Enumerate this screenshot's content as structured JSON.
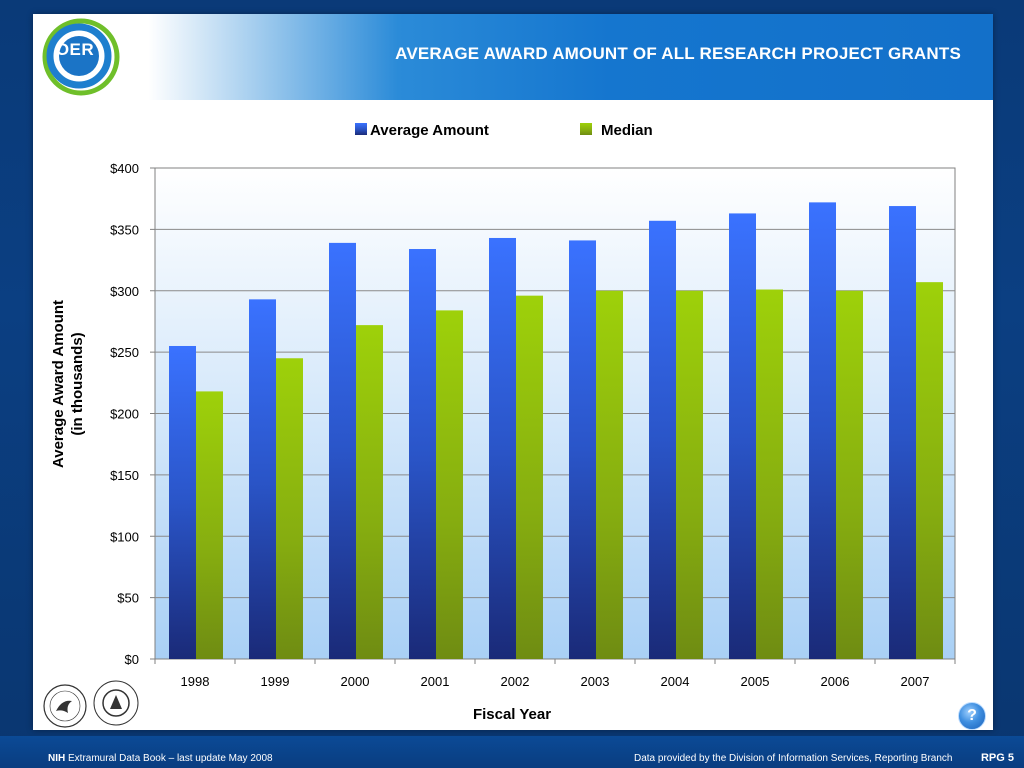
{
  "header": {
    "title": "AVERAGE AWARD AMOUNT OF ALL RESEARCH PROJECT GRANTS",
    "logo_text": "OER"
  },
  "colors": {
    "average": "#2f62e8",
    "median": "#8cc20a",
    "banner": "#1576cf"
  },
  "chart_data": {
    "type": "bar",
    "categories": [
      "1998",
      "1999",
      "2000",
      "2001",
      "2002",
      "2003",
      "2004",
      "2005",
      "2006",
      "2007"
    ],
    "series": [
      {
        "name": "Average Amount",
        "values": [
          255,
          293,
          339,
          334,
          343,
          341,
          357,
          363,
          372,
          369
        ]
      },
      {
        "name": "Median",
        "values": [
          218,
          245,
          272,
          284,
          296,
          300,
          300,
          301,
          300,
          307
        ]
      }
    ],
    "ytick_labels": [
      "$0",
      "$50",
      "$100",
      "$150",
      "$200",
      "$250",
      "$300",
      "$350",
      "$400"
    ],
    "ylim": [
      0,
      400
    ],
    "ylabel_line1": "Average Award Amount",
    "ylabel_line2": "(in thousands)",
    "xlabel": "Fiscal Year",
    "legend_position": "top",
    "grid": true
  },
  "footer": {
    "left_bold": "NIH",
    "left_text": " Extramural Data Book – last update May 2008",
    "right_text": "Data provided by the Division of Information Services, Reporting Branch",
    "page": "RPG 5"
  },
  "help": {
    "label": "?"
  },
  "icons": {
    "hhs_seal": "hhs-seal-icon",
    "nih_seal": "nih-seal-icon",
    "help": "help-icon"
  }
}
